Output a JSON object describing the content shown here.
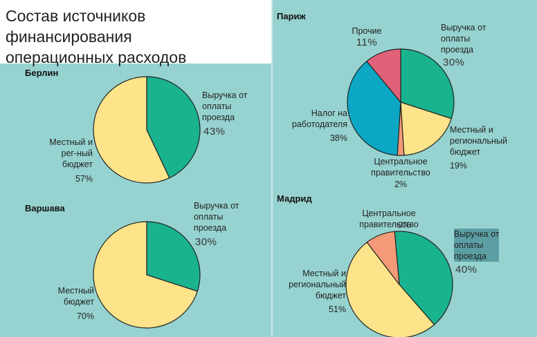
{
  "title": "Состав источников финансирования\nоперационных расходов",
  "colors": {
    "fares": "#19b38f",
    "local": "#fde48a",
    "other": "#e0627a",
    "employer_tax": "#0ca7c4",
    "central": "#f49a78"
  },
  "chart_data": [
    {
      "type": "pie",
      "title": "Берлин",
      "slices": [
        {
          "label": "Выручка от\nоплаты\nпроезда",
          "value": 43,
          "display": "43%",
          "color": "#19b38f"
        },
        {
          "label": "Местный и\nрег-ный\nбюджет",
          "value": 57,
          "display": "57%",
          "color": "#fde48a"
        }
      ]
    },
    {
      "type": "pie",
      "title": "Варшава",
      "slices": [
        {
          "label": "Выручка от\nоплаты\nпроезда",
          "value": 30,
          "display": "30%",
          "color": "#19b38f"
        },
        {
          "label": "Местный\nбюджет",
          "value": 70,
          "display": "70%",
          "color": "#fde48a"
        }
      ]
    },
    {
      "type": "pie",
      "title": "Париж",
      "slices": [
        {
          "label": "Выручка от\nоплаты\nпроезда",
          "value": 30,
          "display": "30%",
          "color": "#19b38f"
        },
        {
          "label": "Местный и\nрегиональный\nбюджет",
          "value": 19,
          "display": "19%",
          "color": "#fde48a"
        },
        {
          "label": "Центральное\nправительство",
          "value": 2,
          "display": "2%",
          "color": "#f49a78"
        },
        {
          "label": "Налог на\nработодателя",
          "value": 38,
          "display": "38%",
          "color": "#0ca7c4"
        },
        {
          "label": "Прочие",
          "value": 11,
          "display": "11%",
          "color": "#e0627a"
        }
      ]
    },
    {
      "type": "pie",
      "title": "Мадрид",
      "slices": [
        {
          "label": "Выручка от\nоплаты\nпроезда",
          "value": 40,
          "display": "40%",
          "color": "#19b38f"
        },
        {
          "label": "Местный и\nрегиональный\nбюджет",
          "value": 51,
          "display": "51%",
          "color": "#fde48a"
        },
        {
          "label": "Центральное\nправительство",
          "value": 9,
          "display": "9%",
          "color": "#f49a78"
        }
      ]
    }
  ]
}
